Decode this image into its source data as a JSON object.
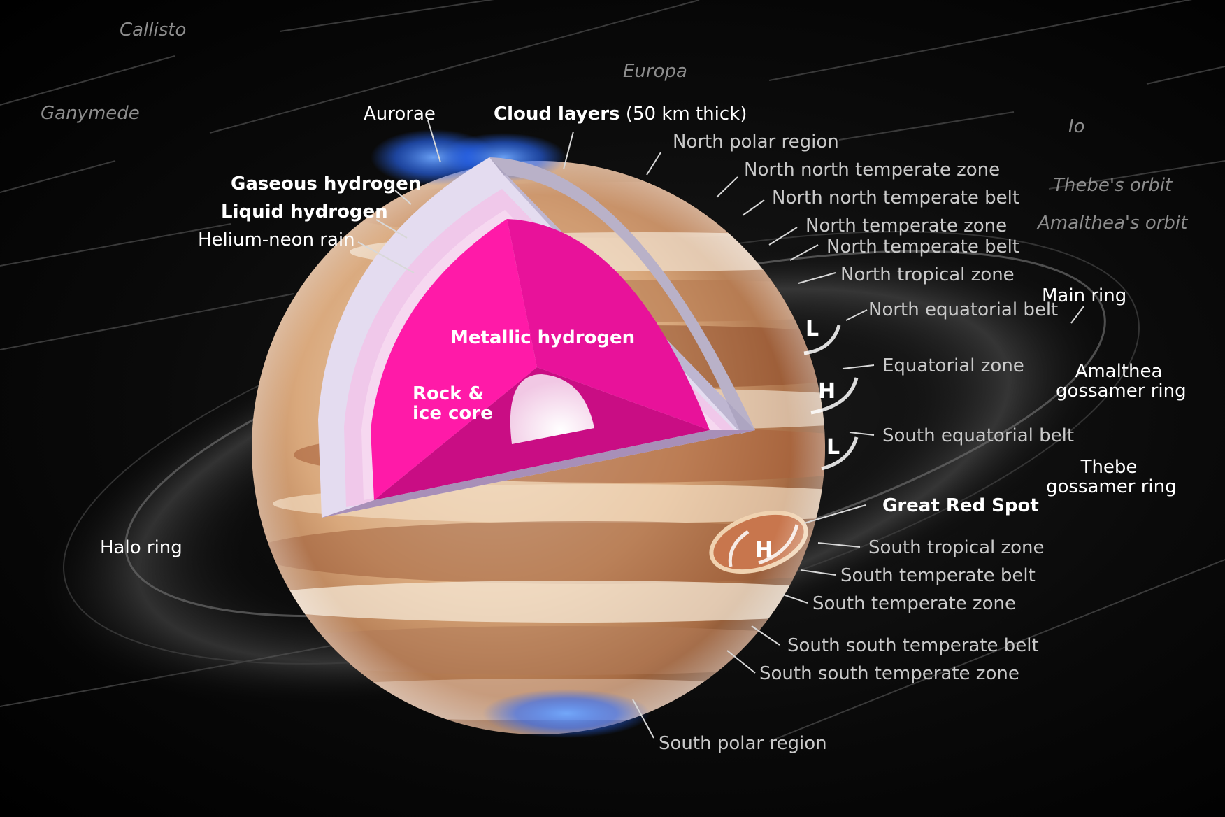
{
  "moons": {
    "callisto": "Callisto",
    "ganymede": "Ganymede",
    "europa": "Europa",
    "io": "Io"
  },
  "orbits": {
    "thebe": "Thebe's orbit",
    "amalthea": "Amalthea's orbit"
  },
  "interior": {
    "aurorae": "Aurorae",
    "cloud_layers_bold": "Cloud layers",
    "cloud_layers_note": "(50 km thick)",
    "gaseous_hydrogen": "Gaseous hydrogen",
    "liquid_hydrogen": "Liquid hydrogen",
    "helium_neon_rain": "Helium-neon rain",
    "metallic_hydrogen": "Metallic hydrogen",
    "rock_core_line1": "Rock &",
    "rock_core_line2": "ice core"
  },
  "atmosphere": {
    "north_polar_region": "North polar region",
    "nn_temperate_zone": "North north temperate zone",
    "nn_temperate_belt": "North north temperate belt",
    "n_temperate_zone": "North temperate zone",
    "n_temperate_belt": "North temperate belt",
    "n_tropical_zone": "North tropical zone",
    "n_equatorial_belt": "North equatorial belt",
    "equatorial_zone": "Equatorial zone",
    "s_equatorial_belt": "South equatorial belt",
    "great_red_spot": "Great Red Spot",
    "s_tropical_zone": "South tropical zone",
    "s_temperate_belt": "South temperate belt",
    "s_temperate_zone": "South temperate zone",
    "ss_temperate_belt": "South south temperate belt",
    "ss_temperate_zone": "South south temperate zone",
    "south_polar_region": "South polar region"
  },
  "rings": {
    "main_ring": "Main ring",
    "amalthea_line1": "Amalthea",
    "amalthea_line2": "gossamer ring",
    "thebe_line1": "Thebe",
    "thebe_line2": "gossamer ring",
    "halo_ring": "Halo ring"
  },
  "pressure_markers": {
    "l1": "L",
    "h1": "H",
    "l2": "L",
    "h2": "H"
  },
  "colors": {
    "metallic_hydrogen": "#e8129a",
    "liquid_hydrogen": "#f0b8e8",
    "gaseous_hydrogen": "#e4dcf0",
    "aurora": "#2a6bff"
  }
}
